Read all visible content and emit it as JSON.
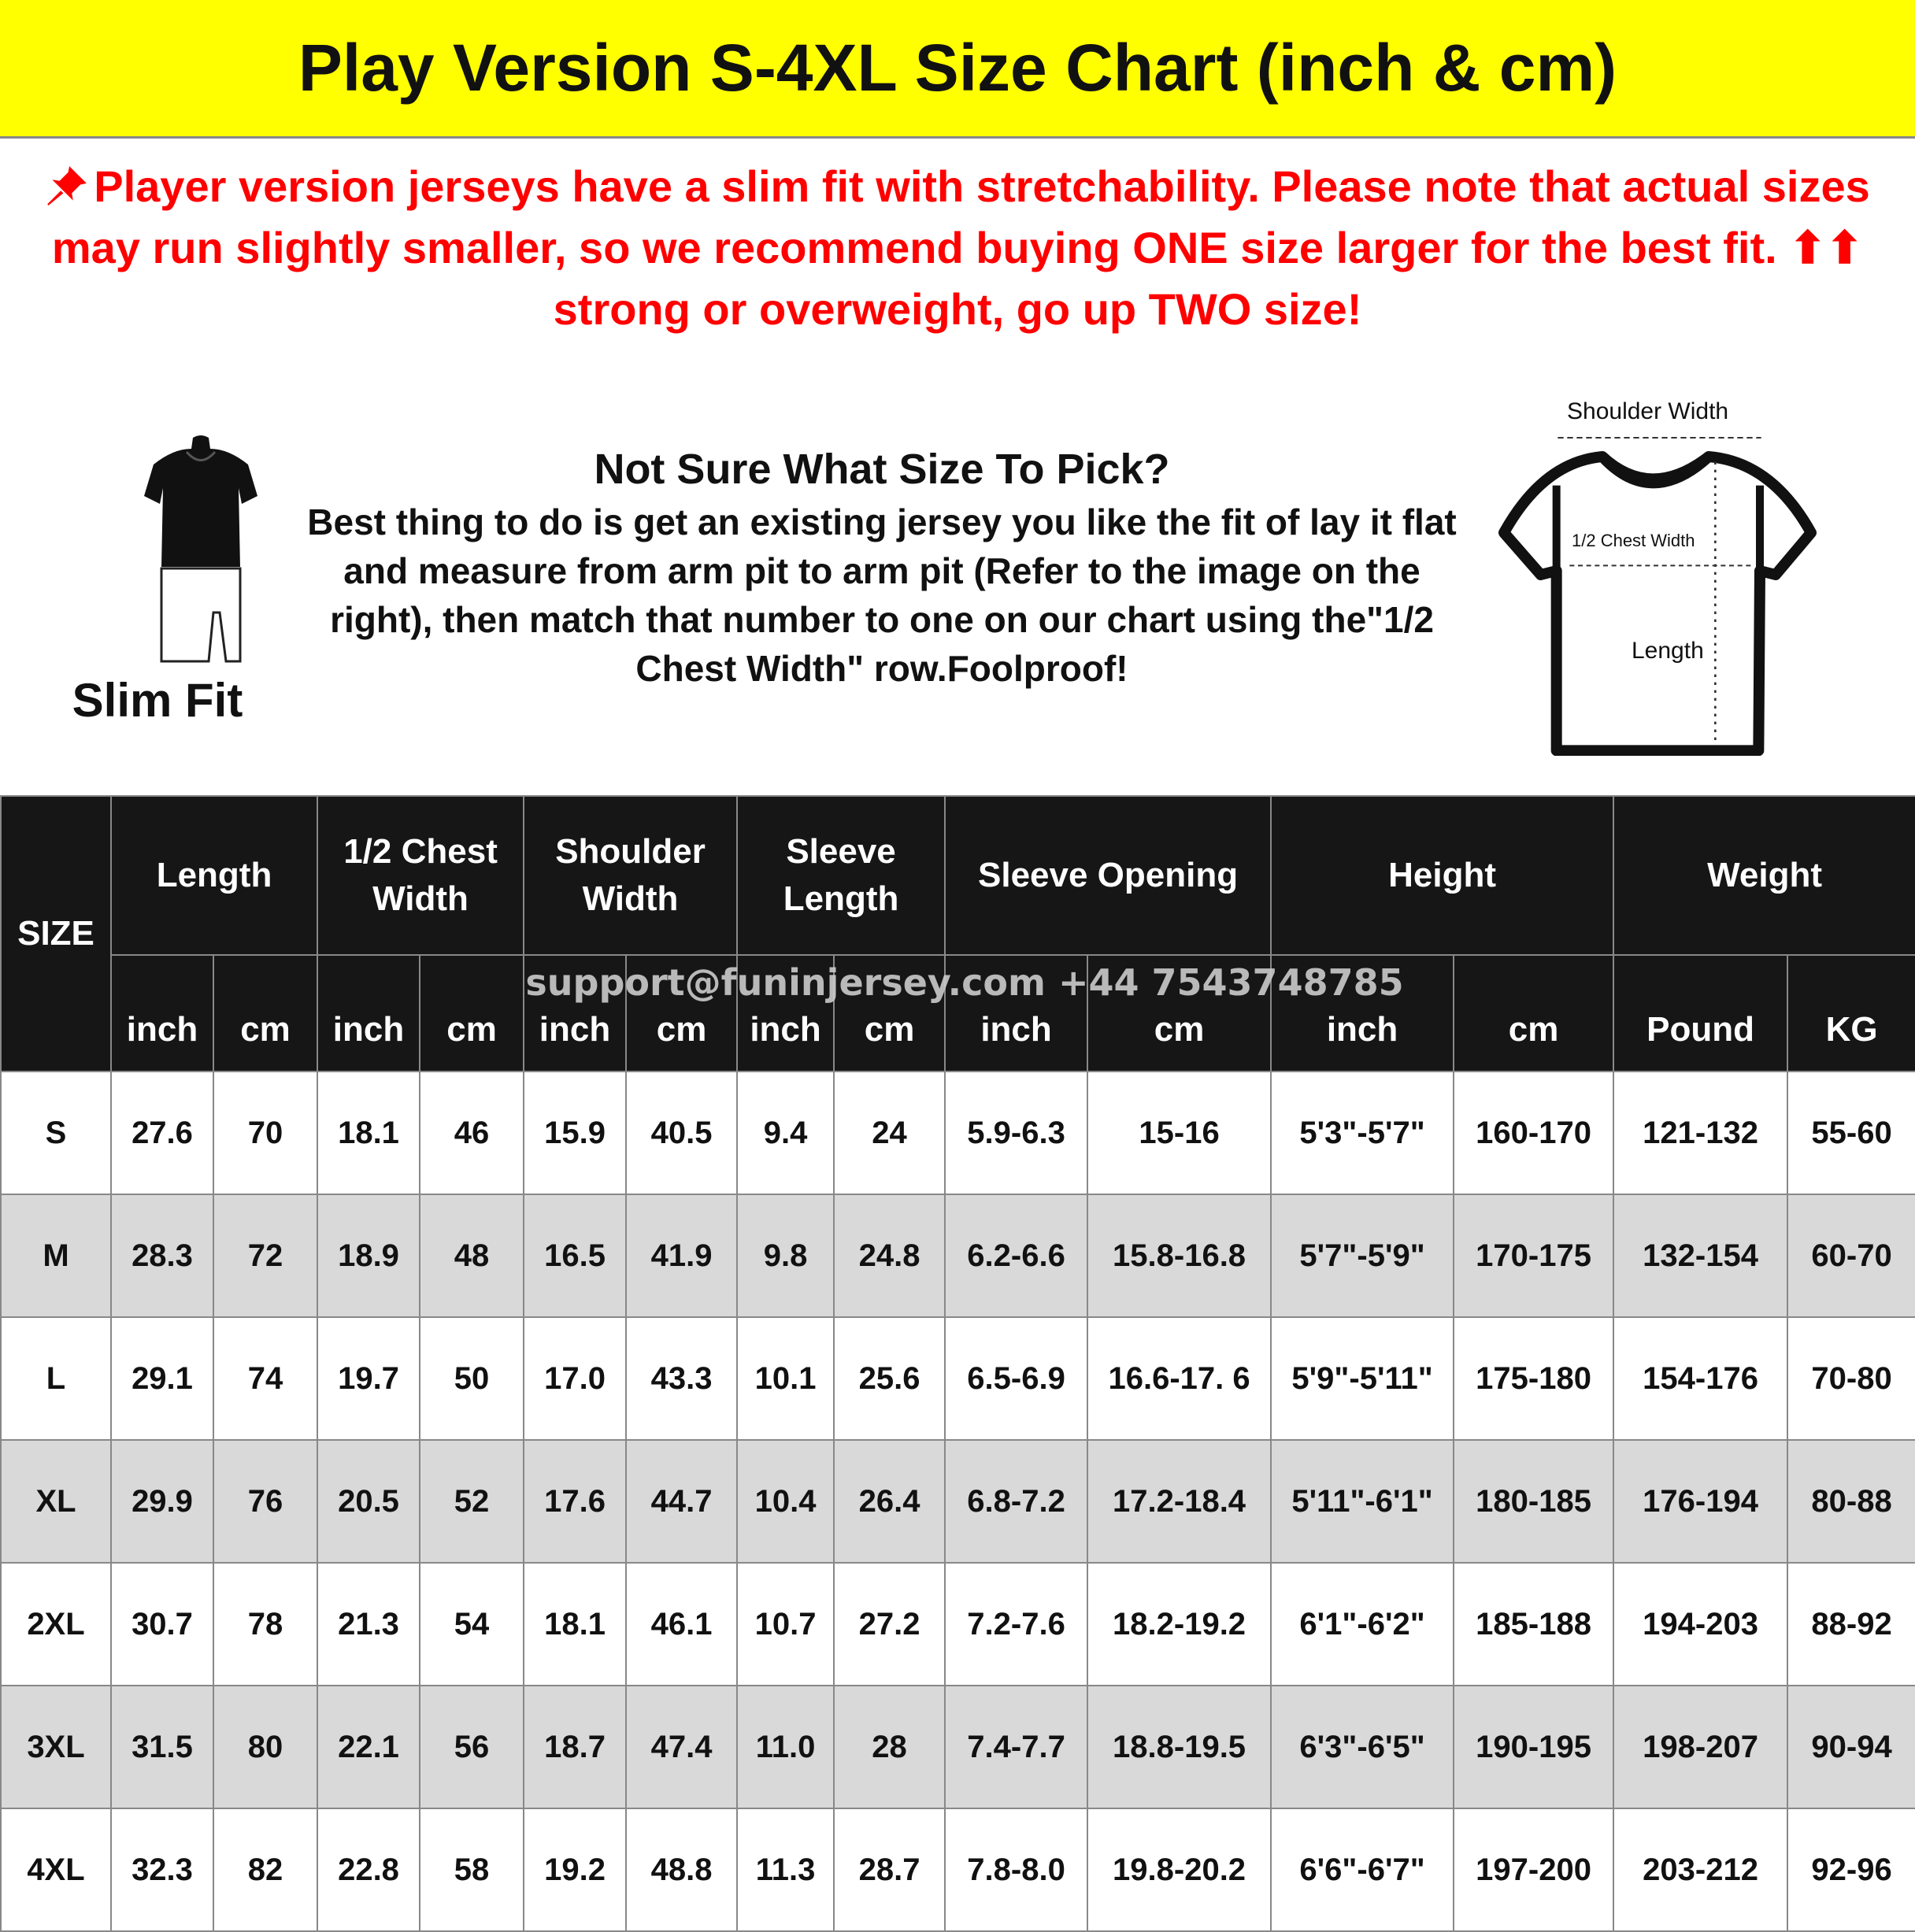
{
  "title": "Play Version S-4XL Size Chart (inch & cm)",
  "colors": {
    "title_bg": "#ffff00",
    "notice_text": "#ff0000",
    "header_bg": "#161616",
    "alt_row": "#d9d9d9"
  },
  "notice": {
    "icon": "pushpin-icon",
    "lines": [
      "Player version jerseys have a slim fit with stretchability. Please note that actual sizes may run",
      "slightly smaller, so we recommend buying ONE size larger for the best fit. ⬆⬆ strong or overweight, go",
      "up TWO size!"
    ]
  },
  "guide": {
    "lines": [
      "Not Sure What Size To Pick?",
      "Best thing to do is get an existing jersey you like the fit of lay it",
      "flat and measure from arm pit to arm pit (Refer to the image on",
      "the right), then match that number to one on our chart using",
      "the\"1/2 Chest Width\" row.Foolproof!"
    ]
  },
  "slim_fit_label": "Slim Fit",
  "diagram": {
    "shoulder": "Shoulder Width",
    "chest": "1/2 Chest Width",
    "length": "Length"
  },
  "watermark": "support@funinjersey.com +44 7543748785",
  "table": {
    "size_header": "SIZE",
    "groups": [
      {
        "label": "Length",
        "span": 2
      },
      {
        "label": "1/2 Chest Width",
        "span": 2
      },
      {
        "label": "Shoulder Width",
        "span": 2
      },
      {
        "label": "Sleeve Length",
        "span": 2
      },
      {
        "label": "Sleeve Opening",
        "span": 2
      },
      {
        "label": "Height",
        "span": 2
      },
      {
        "label": "Weight",
        "span": 2
      }
    ],
    "units": [
      "inch",
      "cm",
      "inch",
      "cm",
      "inch",
      "cm",
      "inch",
      "cm",
      "inch",
      "cm",
      "inch",
      "cm",
      "Pound",
      "KG"
    ],
    "rows": [
      [
        "S",
        "27.6",
        "70",
        "18.1",
        "46",
        "15.9",
        "40.5",
        "9.4",
        "24",
        "5.9-6.3",
        "15-16",
        "5'3\"-5'7\"",
        "160-170",
        "121-132",
        "55-60"
      ],
      [
        "M",
        "28.3",
        "72",
        "18.9",
        "48",
        "16.5",
        "41.9",
        "9.8",
        "24.8",
        "6.2-6.6",
        "15.8-16.8",
        "5'7\"-5'9\"",
        "170-175",
        "132-154",
        "60-70"
      ],
      [
        "L",
        "29.1",
        "74",
        "19.7",
        "50",
        "17.0",
        "43.3",
        "10.1",
        "25.6",
        "6.5-6.9",
        "16.6-17. 6",
        "5'9\"-5'11\"",
        "175-180",
        "154-176",
        "70-80"
      ],
      [
        "XL",
        "29.9",
        "76",
        "20.5",
        "52",
        "17.6",
        "44.7",
        "10.4",
        "26.4",
        "6.8-7.2",
        "17.2-18.4",
        "5'11\"-6'1\"",
        "180-185",
        "176-194",
        "80-88"
      ],
      [
        "2XL",
        "30.7",
        "78",
        "21.3",
        "54",
        "18.1",
        "46.1",
        "10.7",
        "27.2",
        "7.2-7.6",
        "18.2-19.2",
        "6'1\"-6'2\"",
        "185-188",
        "194-203",
        "88-92"
      ],
      [
        "3XL",
        "31.5",
        "80",
        "22.1",
        "56",
        "18.7",
        "47.4",
        "11.0",
        "28",
        "7.4-7.7",
        "18.8-19.5",
        "6'3\"-6'5\"",
        "190-195",
        "198-207",
        "90-94"
      ],
      [
        "4XL",
        "32.3",
        "82",
        "22.8",
        "58",
        "19.2",
        "48.8",
        "11.3",
        "28.7",
        "7.8-8.0",
        "19.8-20.2",
        "6'6\"-6'7\"",
        "197-200",
        "203-212",
        "92-96"
      ]
    ]
  }
}
